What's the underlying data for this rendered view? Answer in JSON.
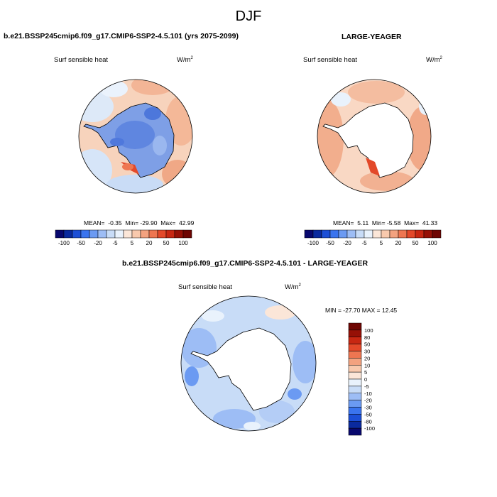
{
  "title": "DJF",
  "panels": [
    {
      "case": "b.e21.BSSP245cmip6.f09_g17.CMIP6-SSP2-4.5.101 (yrs 2075-2099)",
      "variable": "Surf sensible heat",
      "units": "W/m",
      "units_exp": "2",
      "stats": {
        "mean_label": "MEAN=",
        "mean": "-0.35",
        "min_label": "Min=",
        "min": "-29.90",
        "max_label": "Max=",
        "max": "42.99"
      }
    },
    {
      "case": "LARGE-YEAGER",
      "variable": "Surf sensible heat",
      "units": "W/m",
      "units_exp": "2",
      "stats": {
        "mean_label": "MEAN=",
        "mean": "5.11",
        "min_label": "Min=",
        "min": "-5.58",
        "max_label": "Max=",
        "max": "41.33"
      }
    },
    {
      "case": "b.e21.BSSP245cmip6.f09_g17.CMIP6-SSP2-4.5.101 - LARGE-YEAGER",
      "variable": "Surf sensible heat",
      "units": "W/m",
      "units_exp": "2",
      "stats": {
        "min_label": "MIN =",
        "min": "-27.70",
        "max_label": "MAX =",
        "max": "12.45"
      }
    }
  ],
  "colorbar_horizontal": {
    "labels": [
      "-100",
      "-50",
      "-20",
      "-5",
      "5",
      "20",
      "50",
      "100"
    ],
    "colors": [
      "#08086e",
      "#0a2a9e",
      "#1c4fd6",
      "#3a74ee",
      "#6b9af2",
      "#9dbdf5",
      "#c8dcf7",
      "#e9f2fc",
      "#fbe6d8",
      "#f8c9ad",
      "#f3a27f",
      "#ee7651",
      "#e3492a",
      "#c72712",
      "#961006",
      "#6e0502"
    ]
  },
  "colorbar_vertical": {
    "labels": [
      "100",
      "80",
      "50",
      "30",
      "20",
      "10",
      "5",
      "0",
      "-5",
      "-10",
      "-20",
      "-30",
      "-50",
      "-80",
      "-100"
    ],
    "colors": [
      "#6e0502",
      "#961006",
      "#c72712",
      "#e3492a",
      "#ee7651",
      "#f3a27f",
      "#f8c9ad",
      "#fbe6d8",
      "#e9f2fc",
      "#c8dcf7",
      "#9dbdf5",
      "#6b9af2",
      "#3a74ee",
      "#1c4fd6",
      "#0a2a9e",
      "#08086e"
    ]
  }
}
